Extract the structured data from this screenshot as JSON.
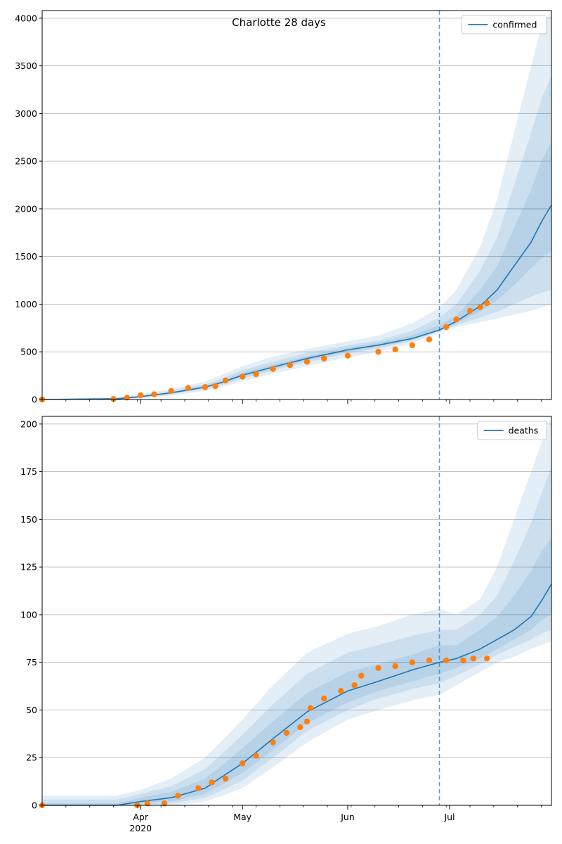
{
  "chart_data": {
    "title": "Charlotte 28 days",
    "type": "line",
    "x_axis": {
      "type": "date",
      "range": [
        "2020-03-03",
        "2020-07-31"
      ],
      "major_ticks": [
        {
          "date": "2020-04-01",
          "label": "Apr",
          "sublabel": "2020"
        },
        {
          "date": "2020-05-01",
          "label": "May",
          "sublabel": ""
        },
        {
          "date": "2020-06-01",
          "label": "Jun",
          "sublabel": ""
        },
        {
          "date": "2020-07-01",
          "label": "Jul",
          "sublabel": ""
        }
      ],
      "minor_tick_interval": "weekly"
    },
    "forecast_start": "2020-06-28",
    "colors": {
      "model": "#1f77b4",
      "observed": "#ff7f0e",
      "grid": "#b0b0b0"
    },
    "panels": [
      {
        "id": "confirmed",
        "ylim": [
          0,
          4080
        ],
        "yticks": [
          0,
          500,
          1000,
          1500,
          2000,
          2500,
          3000,
          3500,
          4000
        ],
        "grid": "horizontal",
        "legend": {
          "position": "top-right",
          "label": "confirmed"
        },
        "model": {
          "dates": [
            "2020-03-03",
            "2020-03-25",
            "2020-04-01",
            "2020-04-10",
            "2020-04-20",
            "2020-04-25",
            "2020-05-01",
            "2020-05-10",
            "2020-05-20",
            "2020-06-01",
            "2020-06-10",
            "2020-06-20",
            "2020-06-28",
            "2020-07-03",
            "2020-07-10",
            "2020-07-15",
            "2020-07-20",
            "2020-07-25",
            "2020-07-28",
            "2020-07-31"
          ],
          "median": [
            0,
            8,
            30,
            70,
            130,
            180,
            255,
            340,
            430,
            520,
            570,
            640,
            730,
            820,
            980,
            1150,
            1400,
            1650,
            1860,
            2040
          ],
          "bands": [
            {
              "lower": [
                0,
                0,
                10,
                40,
                90,
                130,
                190,
                270,
                350,
                440,
                500,
                590,
                700,
                760,
                810,
                850,
                890,
                930,
                965,
                1000
              ],
              "upper": [
                5,
                25,
                55,
                110,
                190,
                260,
                350,
                450,
                530,
                610,
                670,
                800,
                960,
                1150,
                1600,
                2100,
                2800,
                3500,
                3900,
                4080
              ]
            },
            {
              "lower": [
                0,
                2,
                20,
                55,
                110,
                155,
                220,
                305,
                390,
                480,
                535,
                615,
                715,
                780,
                860,
                920,
                1000,
                1080,
                1120,
                1150
              ],
              "upper": [
                2,
                15,
                42,
                90,
                160,
                220,
                310,
                400,
                490,
                570,
                620,
                720,
                860,
                1000,
                1350,
                1700,
                2250,
                2800,
                3150,
                3400
              ]
            },
            {
              "lower": [
                0,
                4,
                25,
                62,
                120,
                168,
                238,
                323,
                410,
                500,
                553,
                628,
                722,
                800,
                920,
                1040,
                1200,
                1380,
                1480,
                1560
              ],
              "upper": [
                1,
                11,
                35,
                79,
                143,
                198,
                280,
                365,
                455,
                545,
                595,
                675,
                780,
                880,
                1150,
                1400,
                1800,
                2200,
                2500,
                2700
              ]
            }
          ]
        },
        "observed": {
          "dates": [
            "2020-03-03",
            "2020-03-24",
            "2020-03-28",
            "2020-04-01",
            "2020-04-05",
            "2020-04-10",
            "2020-04-15",
            "2020-04-20",
            "2020-04-23",
            "2020-04-26",
            "2020-05-01",
            "2020-05-05",
            "2020-05-10",
            "2020-05-15",
            "2020-05-20",
            "2020-05-25",
            "2020-06-01",
            "2020-06-10",
            "2020-06-15",
            "2020-06-20",
            "2020-06-25",
            "2020-06-30",
            "2020-07-03",
            "2020-07-07",
            "2020-07-10",
            "2020-07-12"
          ],
          "values": [
            0,
            5,
            20,
            45,
            55,
            90,
            120,
            130,
            140,
            200,
            240,
            265,
            320,
            360,
            395,
            430,
            460,
            500,
            525,
            570,
            630,
            760,
            840,
            930,
            970,
            1010
          ]
        }
      },
      {
        "id": "deaths",
        "ylim": [
          0,
          204
        ],
        "yticks": [
          0,
          25,
          50,
          75,
          100,
          125,
          150,
          175,
          200
        ],
        "grid": "horizontal",
        "legend": {
          "position": "top-right",
          "label": "deaths"
        },
        "model": {
          "dates": [
            "2020-03-03",
            "2020-03-25",
            "2020-04-01",
            "2020-04-10",
            "2020-04-20",
            "2020-04-25",
            "2020-05-01",
            "2020-05-10",
            "2020-05-20",
            "2020-06-01",
            "2020-06-10",
            "2020-06-20",
            "2020-06-28",
            "2020-07-03",
            "2020-07-10",
            "2020-07-15",
            "2020-07-20",
            "2020-07-25",
            "2020-07-28",
            "2020-07-31"
          ],
          "median": [
            0,
            0,
            2,
            4,
            9,
            15,
            22,
            35,
            49,
            60,
            65,
            71,
            75,
            77,
            82,
            87,
            92,
            99,
            107,
            116
          ],
          "bands": [
            {
              "lower": [
                0,
                0,
                0,
                0,
                2,
                5,
                9,
                20,
                33,
                45,
                50,
                55,
                58,
                63,
                70,
                75,
                78,
                82,
                84,
                86
              ],
              "upper": [
                5,
                5,
                8,
                14,
                25,
                34,
                45,
                63,
                80,
                90,
                94,
                100,
                103,
                100,
                108,
                125,
                150,
                175,
                190,
                204
              ]
            },
            {
              "lower": [
                0,
                0,
                0,
                1,
                4,
                8,
                13,
                25,
                39,
                50,
                56,
                61,
                64,
                68,
                74,
                79,
                83,
                87,
                90,
                92
              ],
              "upper": [
                3,
                3,
                6,
                10,
                19,
                27,
                37,
                53,
                69,
                80,
                84,
                89,
                92,
                92,
                100,
                110,
                128,
                148,
                163,
                178
              ]
            },
            {
              "lower": [
                0,
                0,
                1,
                2,
                6,
                11,
                17,
                29,
                43,
                54,
                60,
                65,
                69,
                72,
                77,
                82,
                87,
                92,
                97,
                100
              ],
              "upper": [
                1,
                1,
                4,
                7,
                14,
                21,
                30,
                44,
                59,
                70,
                74,
                79,
                84,
                84,
                92,
                99,
                110,
                123,
                133,
                140
              ]
            }
          ]
        },
        "observed": {
          "dates": [
            "2020-03-03",
            "2020-03-31",
            "2020-04-03",
            "2020-04-08",
            "2020-04-12",
            "2020-04-18",
            "2020-04-22",
            "2020-04-26",
            "2020-05-01",
            "2020-05-05",
            "2020-05-10",
            "2020-05-14",
            "2020-05-18",
            "2020-05-20",
            "2020-05-21",
            "2020-05-25",
            "2020-05-30",
            "2020-06-03",
            "2020-06-05",
            "2020-06-10",
            "2020-06-15",
            "2020-06-20",
            "2020-06-25",
            "2020-06-30",
            "2020-07-05",
            "2020-07-08",
            "2020-07-12"
          ],
          "values": [
            0,
            0,
            1,
            1,
            5,
            9,
            12,
            14,
            22,
            26,
            33,
            38,
            41,
            44,
            51,
            56,
            60,
            63,
            68,
            72,
            73,
            75,
            76,
            76,
            76,
            77,
            77
          ]
        }
      }
    ]
  }
}
